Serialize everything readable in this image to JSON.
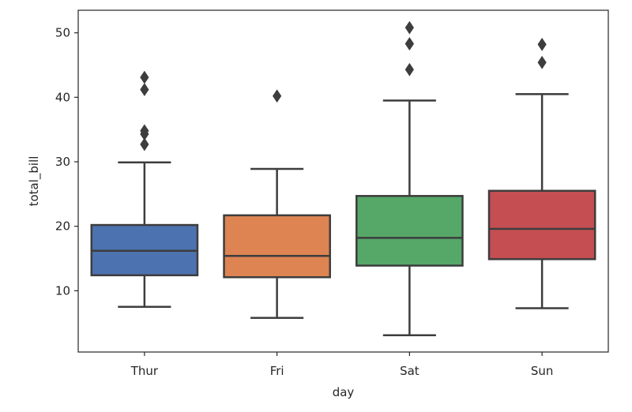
{
  "chart_data": {
    "type": "box",
    "xlabel": "day",
    "ylabel": "total_bill",
    "ylim": [
      0.5,
      53.5
    ],
    "yticks": [
      10,
      20,
      30,
      40,
      50
    ],
    "grid": false,
    "legend": "none",
    "categories": [
      "Thur",
      "Fri",
      "Sat",
      "Sun"
    ],
    "boxes": [
      {
        "category": "Thur",
        "color": "#4c72b0",
        "whisker_low": 7.5,
        "q1": 12.4,
        "median": 16.2,
        "q3": 20.2,
        "whisker_high": 29.9,
        "outliers": [
          32.7,
          34.3,
          34.8,
          41.2,
          43.1
        ]
      },
      {
        "category": "Fri",
        "color": "#dd8452",
        "whisker_low": 5.8,
        "q1": 12.1,
        "median": 15.4,
        "q3": 21.7,
        "whisker_high": 28.9,
        "outliers": [
          40.2
        ]
      },
      {
        "category": "Sat",
        "color": "#55a868",
        "whisker_low": 3.1,
        "q1": 13.9,
        "median": 18.2,
        "q3": 24.7,
        "whisker_high": 39.5,
        "outliers": [
          44.3,
          48.3,
          48.3,
          50.8
        ]
      },
      {
        "category": "Sun",
        "color": "#c44e52",
        "whisker_low": 7.3,
        "q1": 14.9,
        "median": 19.6,
        "q3": 25.5,
        "whisker_high": 40.5,
        "outliers": [
          45.4,
          48.2
        ]
      }
    ]
  }
}
